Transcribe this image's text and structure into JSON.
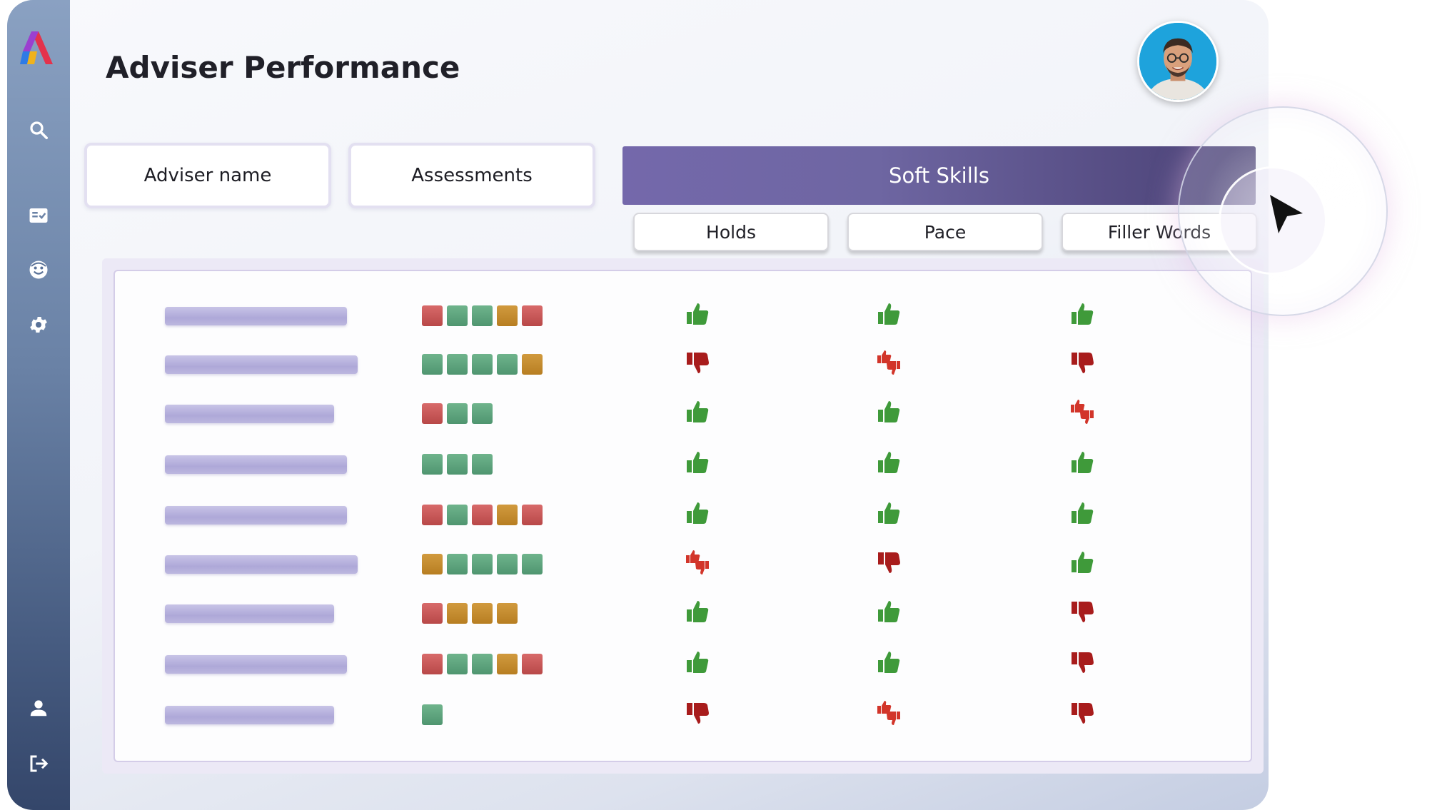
{
  "header": {
    "title": "Adviser Performance"
  },
  "sidebar": {
    "logo": "app-logo",
    "items": [
      {
        "name": "search",
        "icon": "search-icon"
      },
      {
        "name": "assessments",
        "icon": "checklist-icon"
      },
      {
        "name": "insights",
        "icon": "face-icon"
      },
      {
        "name": "settings",
        "icon": "gear-icon"
      },
      {
        "name": "profile",
        "icon": "user-icon"
      },
      {
        "name": "logout",
        "icon": "logout-icon"
      }
    ]
  },
  "columns": {
    "adviser_name": "Adviser name",
    "assessments": "Assessments",
    "soft_skills": "Soft Skills",
    "sub": [
      "Holds",
      "Pace",
      "Filler Words"
    ]
  },
  "colors": {
    "good": "#3f9a3a",
    "bad": "#a81c1c",
    "mixed": "#d2352a",
    "square_red": "#c85858",
    "square_green": "#5fa47e",
    "square_orange": "#c58b2e",
    "accent": "#6a619f"
  },
  "rows": [
    {
      "assessments": [
        "r",
        "g",
        "g",
        "o",
        "r"
      ],
      "holds": "up",
      "pace": "up",
      "filler": "up"
    },
    {
      "assessments": [
        "g",
        "g",
        "g",
        "g",
        "o"
      ],
      "holds": "down",
      "pace": "mixed",
      "filler": "down"
    },
    {
      "assessments": [
        "r",
        "g",
        "g"
      ],
      "holds": "up",
      "pace": "up",
      "filler": "mixed"
    },
    {
      "assessments": [
        "g",
        "g",
        "g"
      ],
      "holds": "up",
      "pace": "up",
      "filler": "up"
    },
    {
      "assessments": [
        "r",
        "g",
        "r",
        "o",
        "r"
      ],
      "holds": "up",
      "pace": "up",
      "filler": "up"
    },
    {
      "assessments": [
        "o",
        "g",
        "g",
        "g",
        "g"
      ],
      "holds": "mixed",
      "pace": "down",
      "filler": "up"
    },
    {
      "assessments": [
        "r",
        "o",
        "o",
        "o"
      ],
      "holds": "up",
      "pace": "up",
      "filler": "down"
    },
    {
      "assessments": [
        "r",
        "g",
        "g",
        "o",
        "r"
      ],
      "holds": "up",
      "pace": "up",
      "filler": "down"
    },
    {
      "assessments": [
        "g"
      ],
      "holds": "down",
      "pace": "mixed",
      "filler": "down"
    }
  ]
}
